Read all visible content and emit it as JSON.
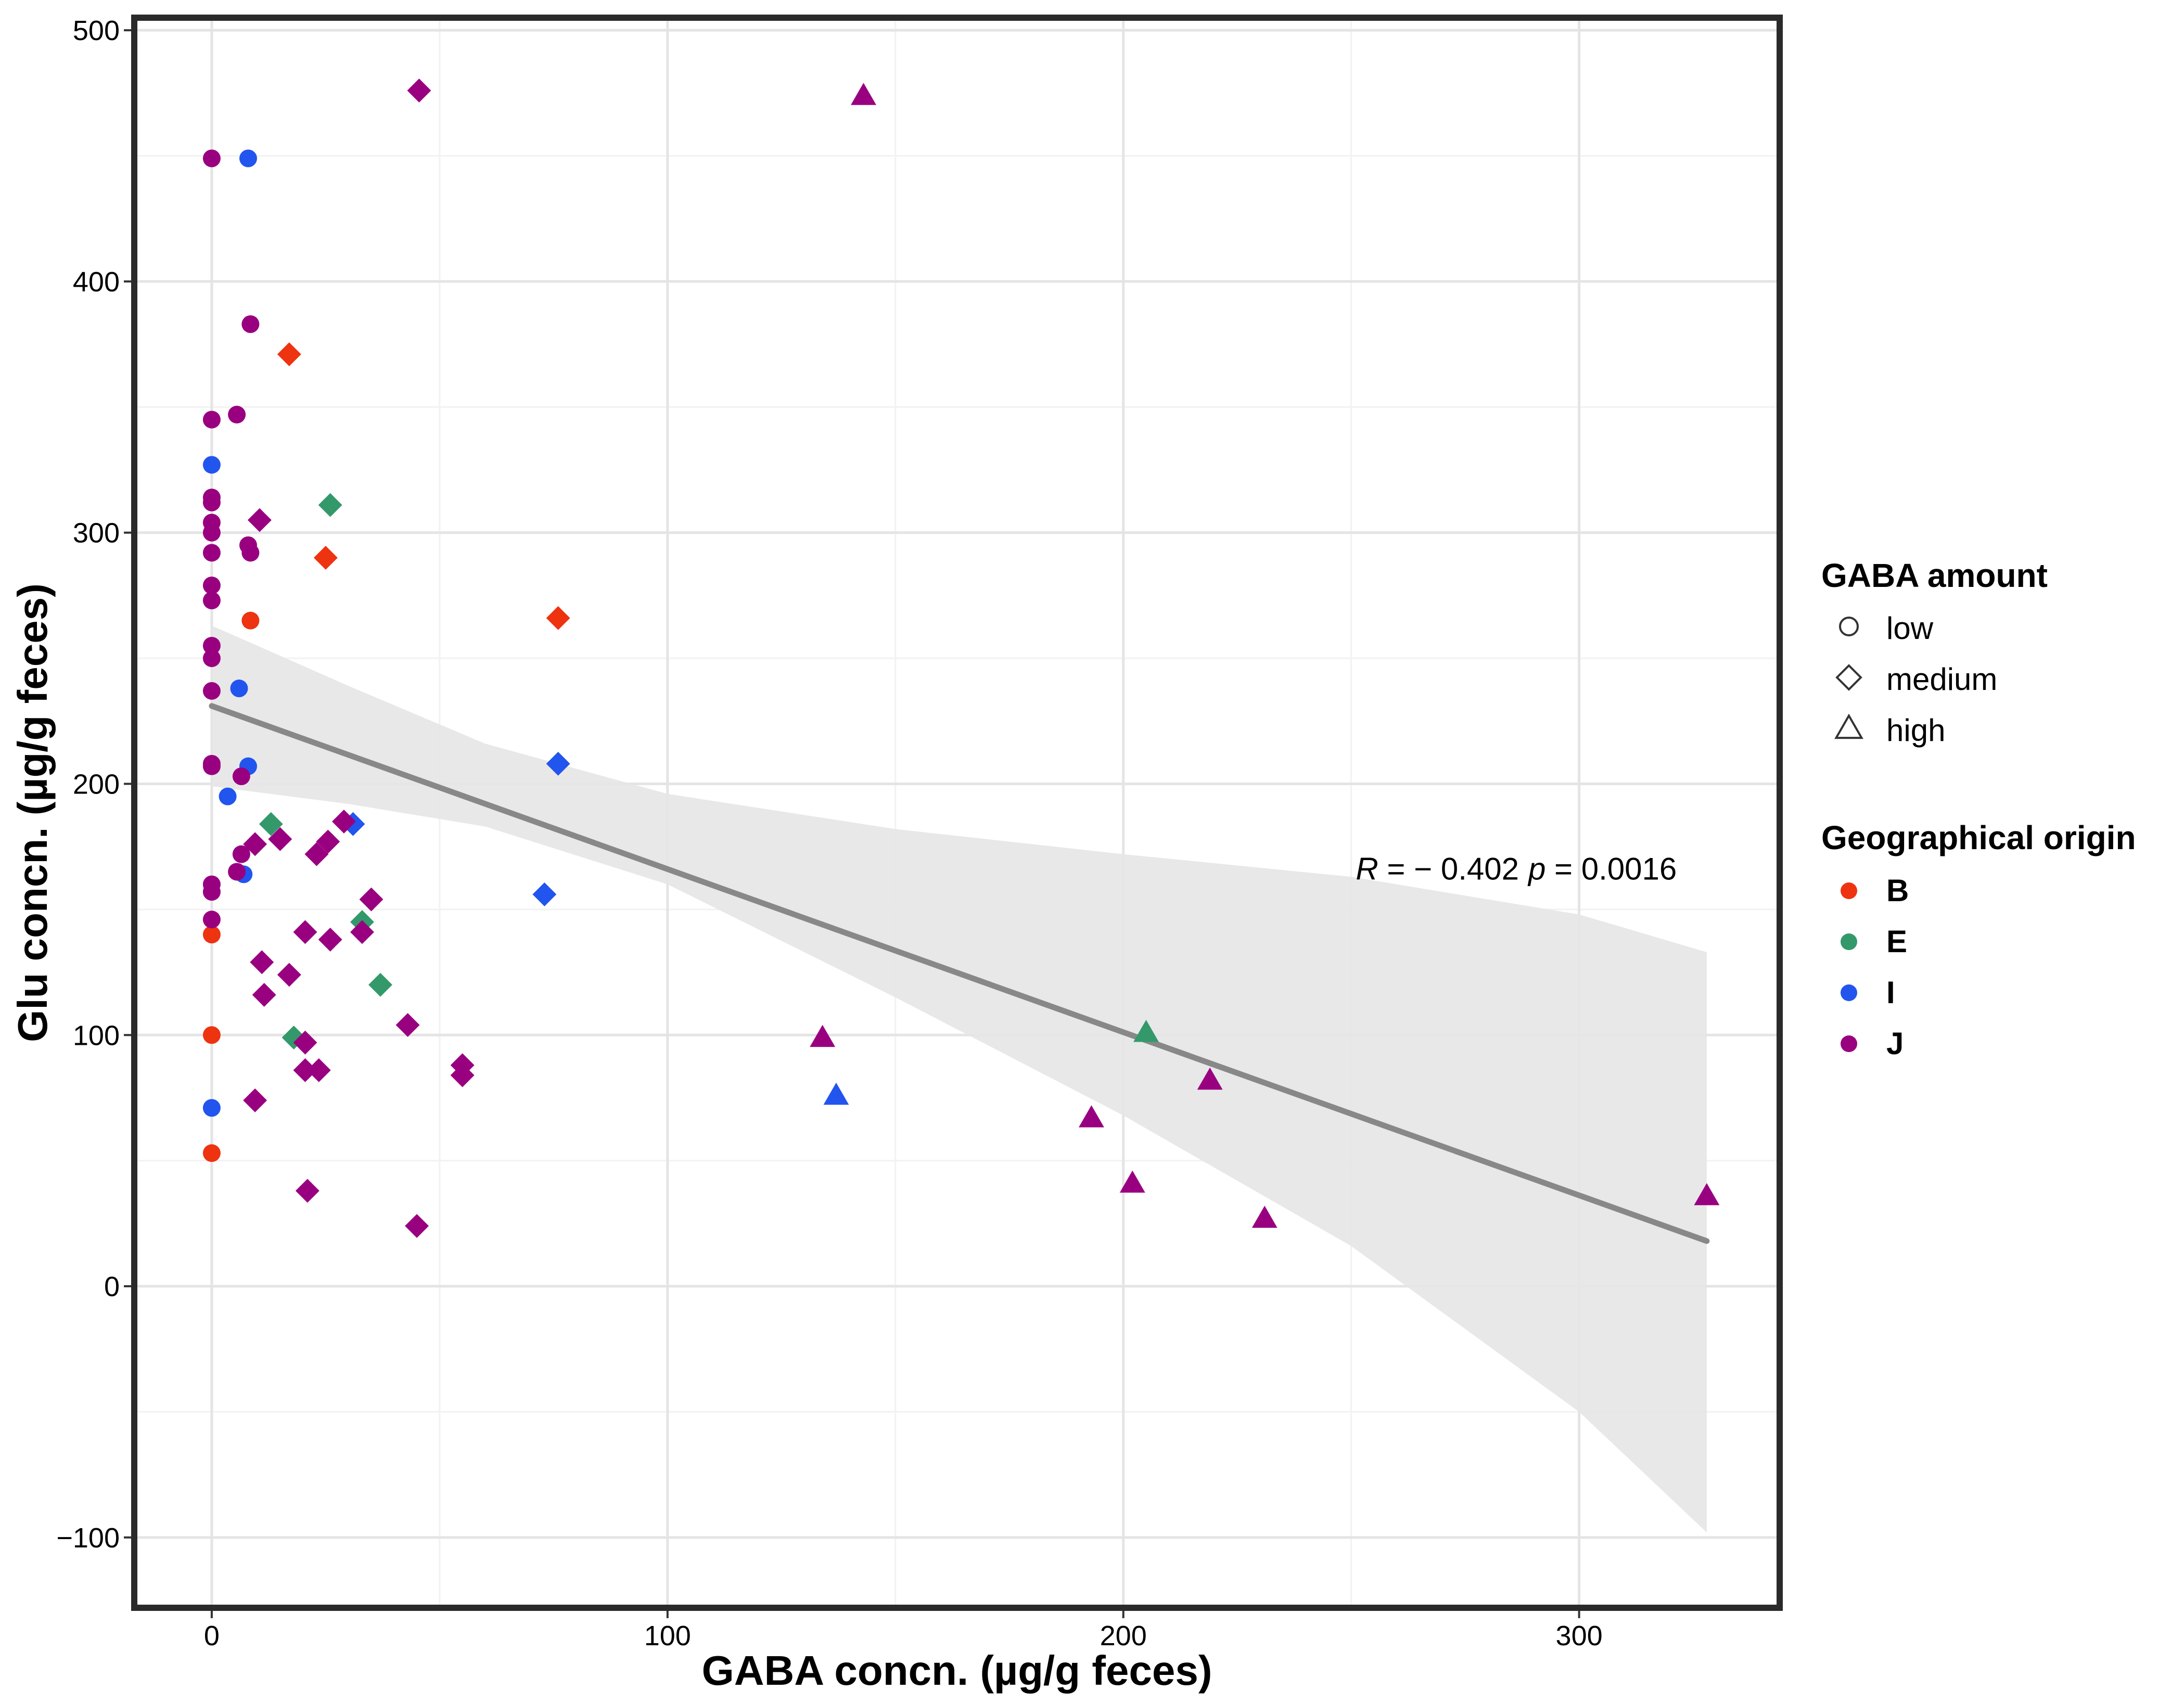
{
  "chart_data": {
    "type": "scatter",
    "xlabel": "GABA concn. (µg/g feces)",
    "ylabel": "Glu concn. (µg/g feces)",
    "xlim": [
      -17,
      344
    ],
    "ylim": [
      -128,
      505
    ],
    "x_ticks": [
      0,
      100,
      200,
      300
    ],
    "y_ticks": [
      -100,
      0,
      100,
      200,
      300,
      400,
      500
    ],
    "grid": true,
    "annotation": {
      "r_label": "R",
      "r_value": " = − 0.402",
      "p_label": "p",
      "p_value": " = 0.0016",
      "x": 251,
      "y": 166
    },
    "regression": {
      "x_start": 0,
      "y_start": 231,
      "x_end": 328,
      "y_end": 18,
      "band_upper": [
        [
          0,
          263
        ],
        [
          30,
          239
        ],
        [
          60,
          216
        ],
        [
          100,
          196
        ],
        [
          150,
          182
        ],
        [
          200,
          172
        ],
        [
          250,
          163
        ],
        [
          300,
          148
        ],
        [
          328,
          133
        ]
      ],
      "band_lower": [
        [
          0,
          199
        ],
        [
          30,
          192
        ],
        [
          60,
          183
        ],
        [
          100,
          160
        ],
        [
          150,
          115
        ],
        [
          200,
          68
        ],
        [
          250,
          16
        ],
        [
          300,
          -50
        ],
        [
          328,
          -98
        ]
      ]
    },
    "legend_shape": {
      "title": "GABA amount",
      "entries": [
        {
          "name": "low",
          "shape": "circle"
        },
        {
          "name": "medium",
          "shape": "diamond"
        },
        {
          "name": "high",
          "shape": "triangle"
        }
      ]
    },
    "legend_color": {
      "title": "Geographical origin",
      "entries": [
        {
          "name": "B",
          "color": "#ee3311"
        },
        {
          "name": "E",
          "color": "#33996b"
        },
        {
          "name": "I",
          "color": "#2255ee"
        },
        {
          "name": "J",
          "color": "#990080"
        }
      ]
    },
    "series": [
      {
        "name": "B",
        "color": "#ee3311",
        "points": [
          {
            "x": 0,
            "y": 140,
            "shape": "circle"
          },
          {
            "x": 0,
            "y": 100,
            "shape": "circle"
          },
          {
            "x": 0,
            "y": 53,
            "shape": "circle"
          },
          {
            "x": 8.5,
            "y": 265,
            "shape": "circle"
          },
          {
            "x": 17,
            "y": 371,
            "shape": "diamond"
          },
          {
            "x": 25,
            "y": 290,
            "shape": "diamond"
          },
          {
            "x": 76,
            "y": 266,
            "shape": "diamond"
          }
        ]
      },
      {
        "name": "E",
        "color": "#33996b",
        "points": [
          {
            "x": 26,
            "y": 311,
            "shape": "diamond"
          },
          {
            "x": 13,
            "y": 184,
            "shape": "diamond"
          },
          {
            "x": 33,
            "y": 145,
            "shape": "diamond"
          },
          {
            "x": 37,
            "y": 120,
            "shape": "diamond"
          },
          {
            "x": 18,
            "y": 99,
            "shape": "diamond"
          },
          {
            "x": 205,
            "y": 101,
            "shape": "triangle"
          }
        ]
      },
      {
        "name": "I",
        "color": "#2255ee",
        "points": [
          {
            "x": 8,
            "y": 449,
            "shape": "circle"
          },
          {
            "x": 0,
            "y": 327,
            "shape": "circle"
          },
          {
            "x": 6,
            "y": 238,
            "shape": "circle"
          },
          {
            "x": 8,
            "y": 207,
            "shape": "circle"
          },
          {
            "x": 3.5,
            "y": 195,
            "shape": "circle"
          },
          {
            "x": 7,
            "y": 164,
            "shape": "circle"
          },
          {
            "x": 0,
            "y": 71,
            "shape": "circle"
          },
          {
            "x": 76,
            "y": 208,
            "shape": "diamond"
          },
          {
            "x": 31,
            "y": 184,
            "shape": "diamond"
          },
          {
            "x": 73,
            "y": 156,
            "shape": "diamond"
          },
          {
            "x": 137,
            "y": 76,
            "shape": "triangle"
          }
        ]
      },
      {
        "name": "J",
        "color": "#990080",
        "points": [
          {
            "x": 0,
            "y": 449,
            "shape": "circle"
          },
          {
            "x": 8.5,
            "y": 383,
            "shape": "circle"
          },
          {
            "x": 0,
            "y": 345,
            "shape": "circle"
          },
          {
            "x": 5.5,
            "y": 347,
            "shape": "circle"
          },
          {
            "x": 0,
            "y": 314,
            "shape": "circle"
          },
          {
            "x": 0,
            "y": 312,
            "shape": "circle"
          },
          {
            "x": 0,
            "y": 304,
            "shape": "circle"
          },
          {
            "x": 0,
            "y": 300,
            "shape": "circle"
          },
          {
            "x": 8,
            "y": 295,
            "shape": "circle"
          },
          {
            "x": 8.5,
            "y": 292,
            "shape": "circle"
          },
          {
            "x": 0,
            "y": 292,
            "shape": "circle"
          },
          {
            "x": 0,
            "y": 279,
            "shape": "circle"
          },
          {
            "x": 0,
            "y": 273,
            "shape": "circle"
          },
          {
            "x": 0,
            "y": 255,
            "shape": "circle"
          },
          {
            "x": 0,
            "y": 250,
            "shape": "circle"
          },
          {
            "x": 0,
            "y": 237,
            "shape": "circle"
          },
          {
            "x": 0,
            "y": 208,
            "shape": "circle"
          },
          {
            "x": 0,
            "y": 207,
            "shape": "circle"
          },
          {
            "x": 6.5,
            "y": 203,
            "shape": "circle"
          },
          {
            "x": 6.5,
            "y": 172,
            "shape": "circle"
          },
          {
            "x": 5.5,
            "y": 165,
            "shape": "circle"
          },
          {
            "x": 0,
            "y": 160,
            "shape": "circle"
          },
          {
            "x": 0,
            "y": 157,
            "shape": "circle"
          },
          {
            "x": 0,
            "y": 146,
            "shape": "circle"
          },
          {
            "x": 45.5,
            "y": 476,
            "shape": "diamond"
          },
          {
            "x": 10.5,
            "y": 305,
            "shape": "diamond"
          },
          {
            "x": 29,
            "y": 185,
            "shape": "diamond"
          },
          {
            "x": 15,
            "y": 178,
            "shape": "diamond"
          },
          {
            "x": 25.5,
            "y": 177,
            "shape": "diamond"
          },
          {
            "x": 9.5,
            "y": 176,
            "shape": "diamond"
          },
          {
            "x": 23,
            "y": 172,
            "shape": "diamond"
          },
          {
            "x": 35,
            "y": 154,
            "shape": "diamond"
          },
          {
            "x": 20.5,
            "y": 141,
            "shape": "diamond"
          },
          {
            "x": 33,
            "y": 141,
            "shape": "diamond"
          },
          {
            "x": 26,
            "y": 138,
            "shape": "diamond"
          },
          {
            "x": 11,
            "y": 129,
            "shape": "diamond"
          },
          {
            "x": 17,
            "y": 124,
            "shape": "diamond"
          },
          {
            "x": 11.5,
            "y": 116,
            "shape": "diamond"
          },
          {
            "x": 43,
            "y": 104,
            "shape": "diamond"
          },
          {
            "x": 20.5,
            "y": 97,
            "shape": "diamond"
          },
          {
            "x": 55,
            "y": 88,
            "shape": "diamond"
          },
          {
            "x": 20.5,
            "y": 86,
            "shape": "diamond"
          },
          {
            "x": 23.5,
            "y": 86,
            "shape": "diamond"
          },
          {
            "x": 55,
            "y": 84,
            "shape": "diamond"
          },
          {
            "x": 9.5,
            "y": 74,
            "shape": "diamond"
          },
          {
            "x": 21,
            "y": 38,
            "shape": "diamond"
          },
          {
            "x": 45,
            "y": 24,
            "shape": "diamond"
          },
          {
            "x": 143,
            "y": 474,
            "shape": "triangle"
          },
          {
            "x": 134,
            "y": 99,
            "shape": "triangle"
          },
          {
            "x": 219,
            "y": 82,
            "shape": "triangle"
          },
          {
            "x": 193,
            "y": 67,
            "shape": "triangle"
          },
          {
            "x": 202,
            "y": 41,
            "shape": "triangle"
          },
          {
            "x": 231,
            "y": 27,
            "shape": "triangle"
          },
          {
            "x": 328,
            "y": 36,
            "shape": "triangle"
          }
        ]
      }
    ]
  }
}
